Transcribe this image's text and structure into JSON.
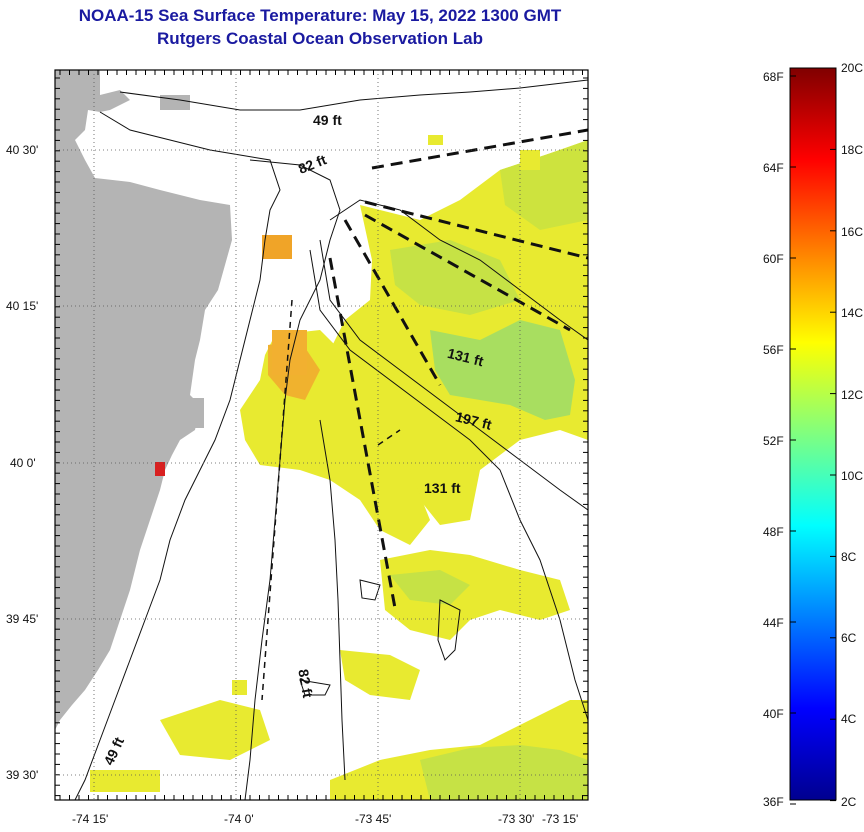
{
  "title": {
    "line1": "NOAA-15 Sea Surface Temperature:  May 15, 2022 1300 GMT",
    "line2": "Rutgers Coastal Ocean Observation Lab"
  },
  "map": {
    "lat_labels": [
      "40 30'",
      "40 15'",
      "40 0'",
      "39 45'",
      "39 30'"
    ],
    "lon_labels": [
      "-74 15'",
      "-74 0'",
      "-73 45'",
      "-73 30'",
      "-73 15'"
    ],
    "contour_labels": [
      "49 ft",
      "82 ft",
      "131 ft",
      "197 ft",
      "131 ft",
      "82 ft",
      "49 ft"
    ],
    "colors": {
      "land": "#b4b4b4",
      "water_no_data": "#ffffff",
      "sst_yellow": "#e8ea30",
      "sst_yellow_green": "#cde33e",
      "sst_green": "#a8de60",
      "sst_orange": "#f0a428",
      "sst_red": "#d82020",
      "contour": "#111111"
    }
  },
  "colorbar": {
    "f_labels": [
      "68F",
      "64F",
      "60F",
      "56F",
      "52F",
      "48F",
      "44F",
      "40F",
      "36F"
    ],
    "c_labels": [
      "20C",
      "18C",
      "16C",
      "14C",
      "12C",
      "10C",
      "8C",
      "6C",
      "4C",
      "2C"
    ],
    "colormap": "jet"
  }
}
